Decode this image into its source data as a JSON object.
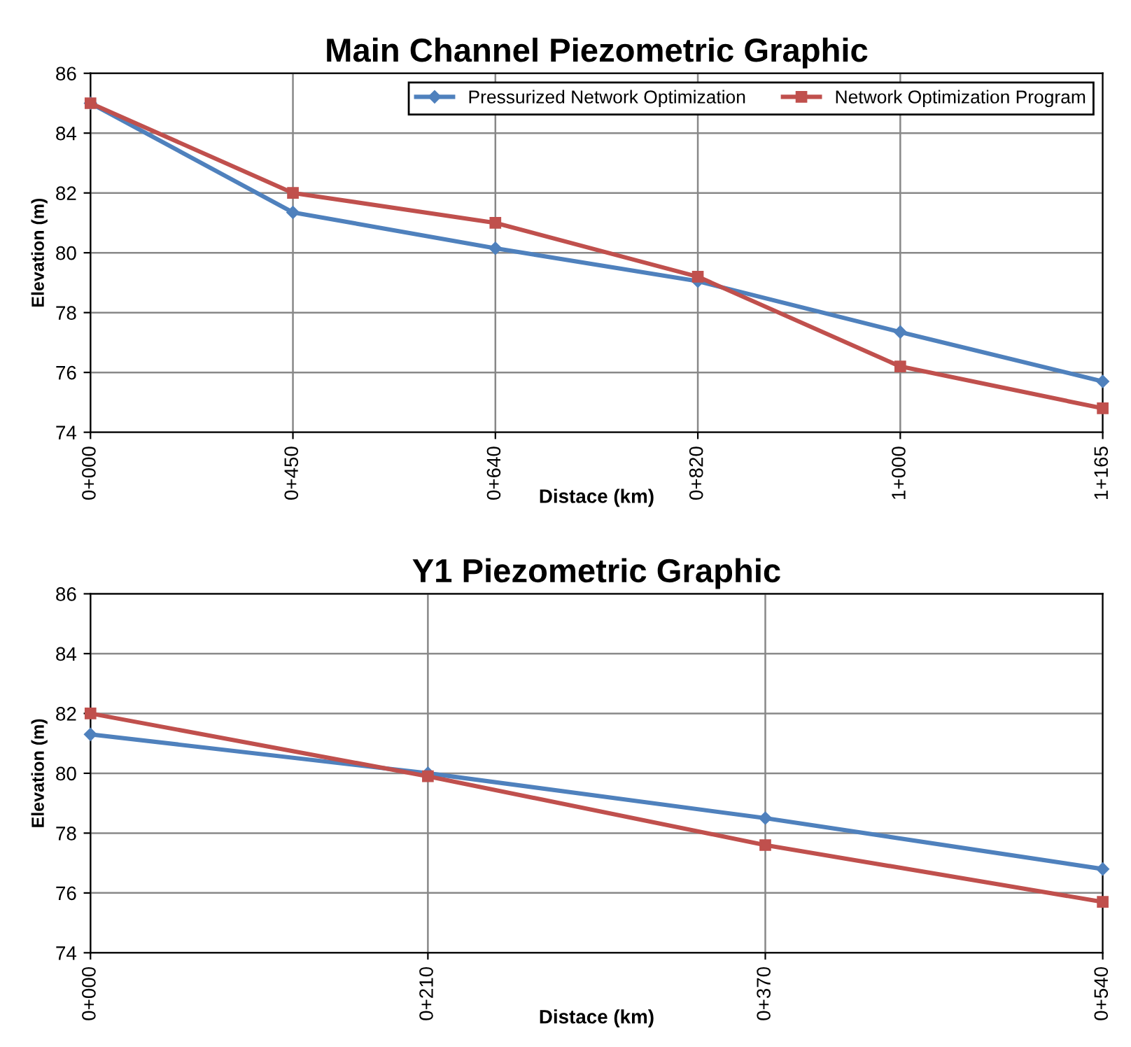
{
  "chart_data": [
    {
      "type": "line",
      "title": "Main Channel Piezometric Graphic",
      "xlabel": "Distace (km)",
      "ylabel": "Elevation (m)",
      "categories": [
        "0+000",
        "0+450",
        "0+640",
        "0+820",
        "1+000",
        "1+165"
      ],
      "series": [
        {
          "name": "Pressurized Network Optimization",
          "color": "#4f81bd",
          "marker": "diamond",
          "values": [
            85,
            81.35,
            80.15,
            79.05,
            77.35,
            75.7
          ]
        },
        {
          "name": "Network Optimization Program",
          "color": "#c0504d",
          "marker": "square",
          "values": [
            85,
            82,
            81,
            79.2,
            76.2,
            74.8
          ]
        }
      ],
      "ylim": [
        74,
        86
      ],
      "yticks": [
        74,
        76,
        78,
        80,
        82,
        84,
        86
      ],
      "grid": true,
      "legend": "top right"
    },
    {
      "type": "line",
      "title": "Y1 Piezometric Graphic",
      "xlabel": "Distace (km)",
      "ylabel": "Elevation (m)",
      "categories": [
        "0+000",
        "0+210",
        "0+370",
        "0+540"
      ],
      "series": [
        {
          "color": "#4f81bd",
          "marker": "diamond",
          "values": [
            81.3,
            80.0,
            78.5,
            76.8
          ]
        },
        {
          "color": "#c0504d",
          "marker": "square",
          "values": [
            82,
            79.9,
            77.6,
            75.7
          ]
        }
      ],
      "ylim": [
        74,
        86
      ],
      "yticks": [
        74,
        76,
        78,
        80,
        82,
        84,
        86
      ],
      "grid": true
    }
  ]
}
